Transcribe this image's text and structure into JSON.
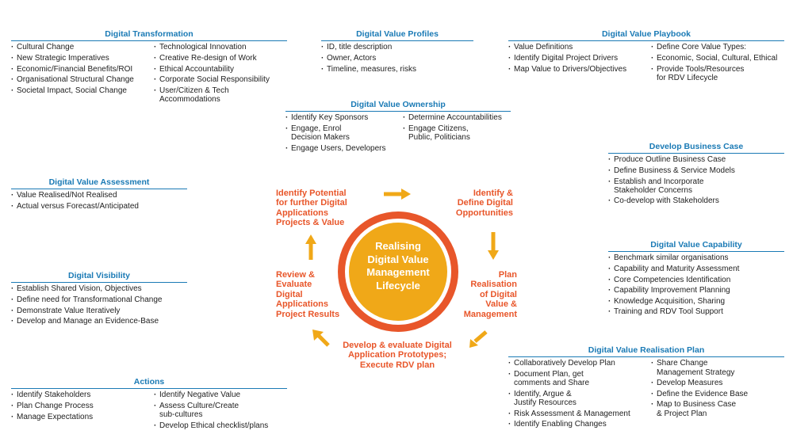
{
  "colors": {
    "title": "#1a7ab5",
    "accent_orange": "#e8562a",
    "arrow": "#f0a818",
    "core": "#f0a818",
    "ring": "#e8562a"
  },
  "panels": {
    "transformation": {
      "title": "Digital Transformation",
      "col1": [
        "Cultural Change",
        "New Strategic Imperatives",
        "Economic/Financial Benefits/ROI",
        "Organisational Structural Change",
        "Societal Impact, Social Change"
      ],
      "col2": [
        "Technological Innovation",
        "Creative Re-design of Work",
        "Ethical Accountability",
        "Corporate Social Responsibility",
        "User/Citizen & Tech\nAccommodations"
      ]
    },
    "profiles": {
      "title": "Digital Value Profiles",
      "col1": [
        "ID, title description",
        "Owner, Actors",
        "Timeline, measures, risks"
      ]
    },
    "playbook": {
      "title": "Digital Value Playbook",
      "col1": [
        "Value Definitions",
        "Identify Digital Project Drivers",
        "Map Value to Drivers/Objectives"
      ],
      "col2": [
        "Define Core Value Types:",
        "Economic, Social, Cultural, Ethical",
        "Provide Tools/Resources\nfor RDV Lifecycle"
      ]
    },
    "ownership": {
      "title": "Digital Value Ownership",
      "col1": [
        "Identify Key Sponsors",
        "Engage, Enrol\nDecision Makers",
        "Engage Users, Developers"
      ],
      "col2": [
        "Determine Accountabilities",
        "Engage Citizens,\nPublic, Politicians"
      ]
    },
    "business_case": {
      "title": "Develop Business Case",
      "col1": [
        "Produce Outline Business Case",
        "Define Business & Service Models",
        "Establish and Incorporate\nStakeholder Concerns",
        "Co-develop with Stakeholders"
      ]
    },
    "assessment": {
      "title": "Digital Value Assessment",
      "col1": [
        "Value Realised/Not Realised",
        "Actual versus Forecast/Anticipated"
      ]
    },
    "capability": {
      "title": "Digital Value Capability",
      "col1": [
        "Benchmark similar organisations",
        "Capability and Maturity Assessment",
        "Core Competencies Identification",
        "Capability Improvement Planning",
        "Knowledge Acquisition, Sharing",
        "Training and RDV Tool Support"
      ]
    },
    "visibility": {
      "title": "Digital Visibility",
      "col1": [
        "Establish Shared Vision, Objectives",
        "Define need for Transformational Change",
        "Demonstrate Value Iteratively",
        "Develop and Manage an Evidence-Base"
      ]
    },
    "realisation": {
      "title": "Digital Value Realisation Plan",
      "col1": [
        "Collaboratively Develop Plan",
        " Document Plan, get\ncomments and Share",
        "Identify, Argue &\nJustify Resources",
        "Risk Assessment & Management",
        "Identify Enabling Changes"
      ],
      "col2": [
        "Share Change\nManagement Strategy",
        "Develop Measures",
        "Define the Evidence Base",
        "Map to Business Case\n& Project Plan"
      ]
    },
    "actions": {
      "title": "Actions",
      "col1": [
        "Identify Stakeholders",
        "Plan Change Process",
        "Manage Expectations"
      ],
      "col2": [
        "Identify Negative Value",
        "Assess Culture/Create\nsub-cultures",
        "Develop Ethical checklist/plans"
      ]
    }
  },
  "cycle": {
    "center": "Realising\nDigital Value\nManagement\nLifecycle",
    "identify_potential": "Identify Potential\nfor further Digital\nApplications\nProjects & Value",
    "identify_define": "Identify &\nDefine Digital\nOpportunities",
    "plan": "Plan\nRealisation\nof Digital\nValue &\nManagement",
    "develop": "Develop & evaluate Digital\nApplication Prototypes;\nExecute RDV plan",
    "review": "Review &\nEvaluate\nDigital\nApplications\nProject Results"
  }
}
